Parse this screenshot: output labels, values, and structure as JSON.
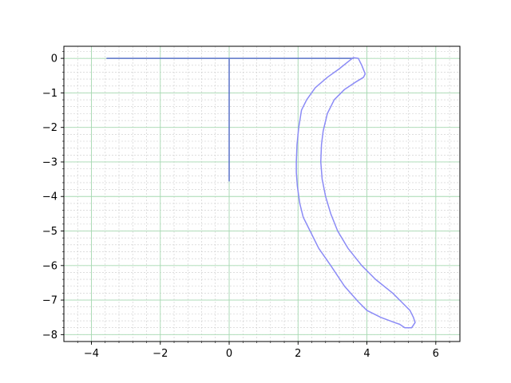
{
  "chart_data": {
    "type": "line",
    "title": "",
    "xlabel": "",
    "ylabel": "",
    "xlim": [
      -4.8,
      6.7
    ],
    "ylim": [
      -8.2,
      0.35
    ],
    "x_ticks": [
      -4,
      -2,
      0,
      2,
      4,
      6
    ],
    "x_tick_labels": [
      "−4",
      "−2",
      "0",
      "2",
      "4",
      "6"
    ],
    "y_ticks": [
      0,
      -1,
      -2,
      -3,
      -4,
      -5,
      -6,
      -7,
      -8
    ],
    "y_tick_labels": [
      "0",
      "−1",
      "−2",
      "−3",
      "−4",
      "−5",
      "−6",
      "−7",
      "−8"
    ],
    "grid": {
      "major": true,
      "minor": true,
      "major_color": "#a6d9b1",
      "minor_color": "#cccccc"
    },
    "legend": "none",
    "series": [
      {
        "color": "#5a74c9",
        "style": "line",
        "points": [
          [
            -3.55,
            0
          ],
          [
            3.6,
            0
          ]
        ]
      },
      {
        "color": "#5a74c9",
        "style": "line",
        "points": [
          [
            0,
            0
          ],
          [
            0,
            -3.55
          ]
        ]
      },
      {
        "color": "#8b8bf6",
        "style": "closed-curve",
        "points": [
          [
            3.6,
            0.02
          ],
          [
            3.75,
            0.0
          ],
          [
            3.85,
            -0.2
          ],
          [
            3.95,
            -0.45
          ],
          [
            3.9,
            -0.55
          ],
          [
            3.65,
            -0.7
          ],
          [
            3.35,
            -0.9
          ],
          [
            3.05,
            -1.2
          ],
          [
            2.85,
            -1.6
          ],
          [
            2.73,
            -2.1
          ],
          [
            2.68,
            -2.5
          ],
          [
            2.66,
            -3.0
          ],
          [
            2.7,
            -3.5
          ],
          [
            2.8,
            -4.0
          ],
          [
            2.95,
            -4.5
          ],
          [
            3.15,
            -5.0
          ],
          [
            3.45,
            -5.5
          ],
          [
            3.85,
            -6.0
          ],
          [
            4.25,
            -6.4
          ],
          [
            4.75,
            -6.8
          ],
          [
            5.05,
            -7.1
          ],
          [
            5.25,
            -7.3
          ],
          [
            5.35,
            -7.5
          ],
          [
            5.4,
            -7.65
          ],
          [
            5.3,
            -7.8
          ],
          [
            5.1,
            -7.8
          ],
          [
            4.95,
            -7.7
          ],
          [
            4.8,
            -7.65
          ],
          [
            4.4,
            -7.5
          ],
          [
            4.0,
            -7.3
          ],
          [
            3.75,
            -7.05
          ],
          [
            3.35,
            -6.6
          ],
          [
            2.95,
            -6.0
          ],
          [
            2.6,
            -5.5
          ],
          [
            2.35,
            -5.0
          ],
          [
            2.15,
            -4.6
          ],
          [
            2.05,
            -4.2
          ],
          [
            1.98,
            -3.7
          ],
          [
            1.95,
            -3.3
          ],
          [
            1.95,
            -3.0
          ],
          [
            1.97,
            -2.5
          ],
          [
            2.02,
            -2.0
          ],
          [
            2.1,
            -1.5
          ],
          [
            2.25,
            -1.2
          ],
          [
            2.5,
            -0.85
          ],
          [
            2.85,
            -0.55
          ],
          [
            3.2,
            -0.3
          ],
          [
            3.45,
            -0.1
          ],
          [
            3.6,
            0.02
          ]
        ]
      }
    ]
  }
}
